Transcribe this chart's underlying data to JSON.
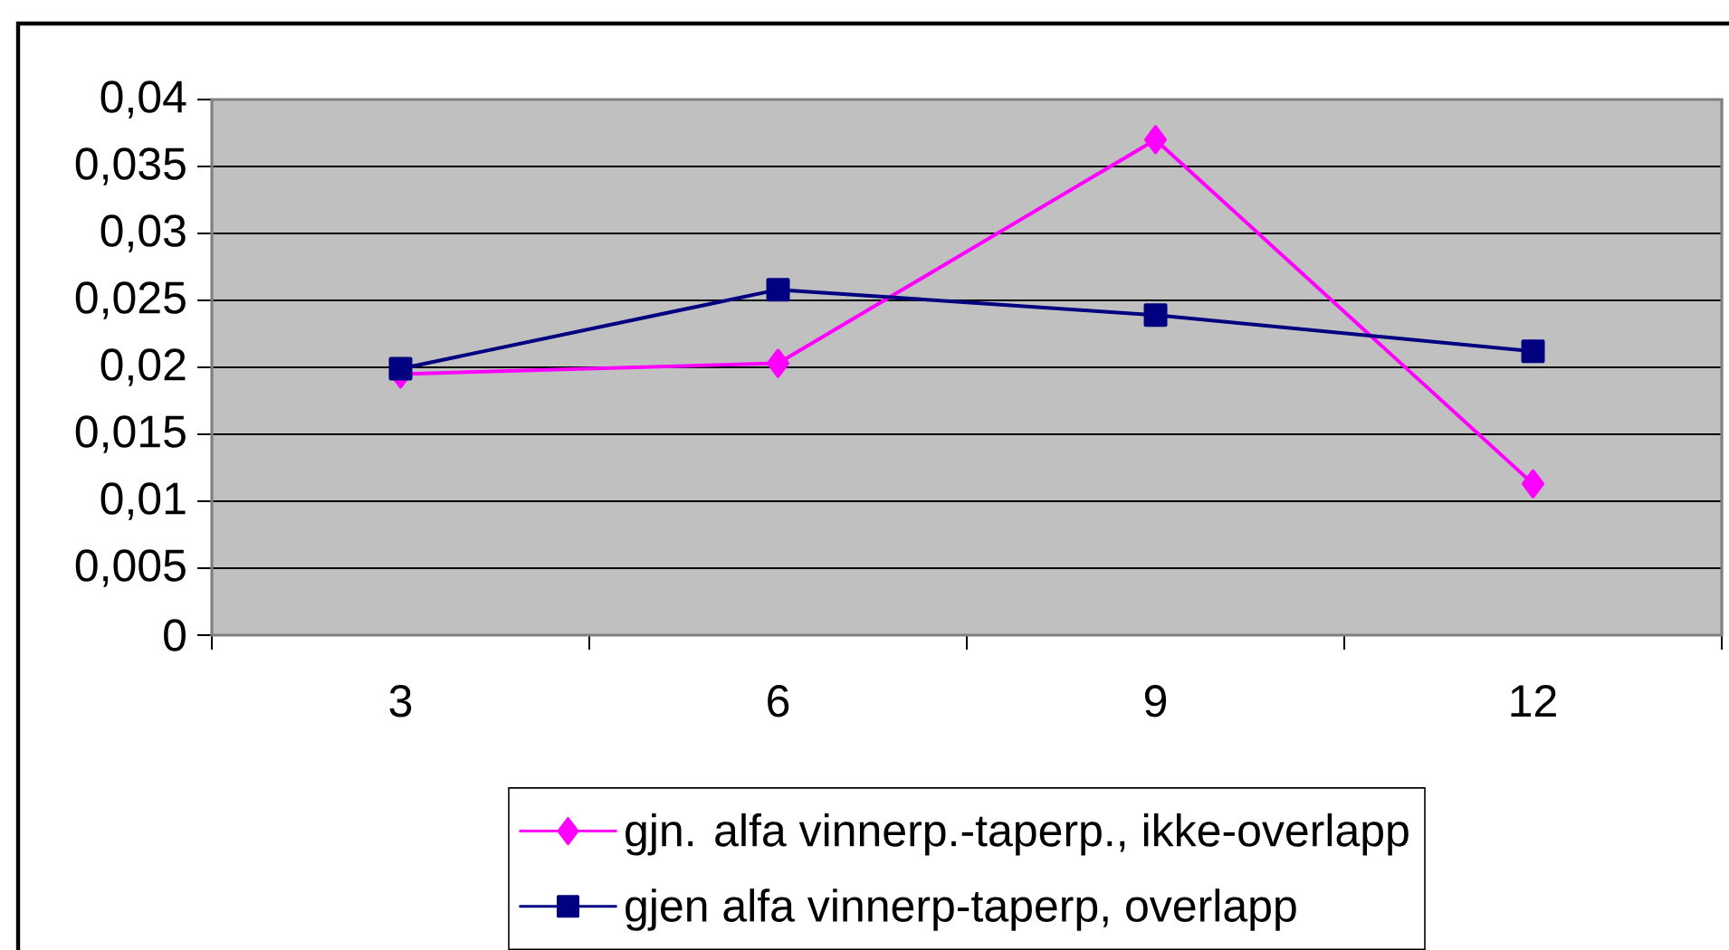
{
  "chart_data": {
    "type": "line",
    "categories": [
      "3",
      "6",
      "9",
      "12"
    ],
    "series": [
      {
        "name": "gjn. alfa vinnerp.-taperp., ikke-overlapp",
        "color": "#ff00ff",
        "marker": "diamond",
        "values": [
          0.0195,
          0.0203,
          0.037,
          0.0113
        ]
      },
      {
        "name": "gjen alfa vinnerp-taperp, overlapp",
        "color": "#000080",
        "marker": "square",
        "values": [
          0.0199,
          0.0258,
          0.0239,
          0.0212
        ]
      }
    ],
    "ylim": [
      0,
      0.04
    ],
    "yticks": [
      0,
      {
        "value": 0.005,
        "label": "0,005"
      },
      {
        "value": 0.01,
        "label": "0,01"
      },
      {
        "value": 0.015,
        "label": "0,015"
      },
      {
        "value": 0.02,
        "label": "0,02"
      },
      {
        "value": 0.025,
        "label": "0,025"
      },
      {
        "value": 0.03,
        "label": "0,03"
      },
      {
        "value": 0.035,
        "label": "0,035"
      },
      {
        "value": 0.04,
        "label": "0,04"
      }
    ],
    "grid": "y",
    "legend": "bottom",
    "line_style": "solid"
  }
}
